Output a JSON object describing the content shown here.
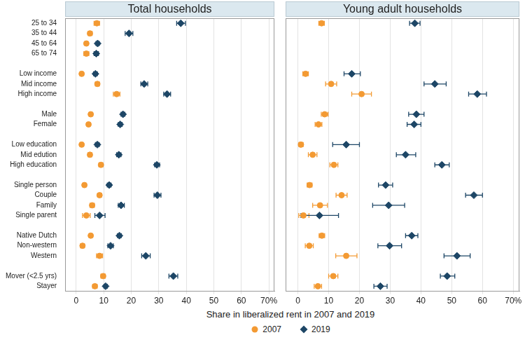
{
  "chart_data": [
    {
      "type": "dot",
      "title": "Total households",
      "categories": [
        "25 to 34",
        "35 to 44",
        "45 to 64",
        "65 to 74",
        null,
        "Low income",
        "Mid income",
        "High income",
        null,
        "Male",
        "Female",
        null,
        "Low education",
        "Mid edution",
        "High education",
        null,
        "Single person",
        "Couple",
        "Family",
        "Single parent",
        null,
        "Native Dutch",
        "Non-western",
        "Western",
        null,
        "Mover (<2.5 yrs)",
        "Stayer"
      ],
      "series": [
        {
          "name": "2007",
          "color": "#f39a33",
          "marker": "circle",
          "values": [
            7.5,
            5,
            3.7,
            3.7,
            null,
            2,
            7.7,
            14.7,
            null,
            5.3,
            4.5,
            null,
            2,
            5,
            9,
            null,
            3,
            8.5,
            5.8,
            3.7,
            null,
            5.3,
            2.3,
            8.5,
            null,
            9.8,
            6.8
          ],
          "ci_low": [
            6.5,
            4.3,
            3.2,
            2.8,
            null,
            1.5,
            7,
            13.5,
            null,
            4.8,
            4,
            null,
            1.5,
            4.3,
            8.3,
            null,
            2.5,
            7.8,
            5,
            2.3,
            null,
            4.8,
            1.6,
            7.4,
            null,
            9,
            6
          ],
          "ci_high": [
            8.5,
            5.8,
            4.2,
            4.6,
            null,
            2.5,
            8.4,
            15.9,
            null,
            5.8,
            5,
            null,
            2.5,
            5.7,
            9.7,
            null,
            3.5,
            9.2,
            6.6,
            5.1,
            null,
            5.8,
            3,
            9.6,
            null,
            10.6,
            7.6
          ]
        },
        {
          "name": "2019",
          "color": "#1d4666",
          "marker": "diamond",
          "values": [
            38,
            19.2,
            7.8,
            7.3,
            null,
            7,
            24.7,
            33,
            null,
            17,
            16,
            null,
            7.7,
            15.5,
            29.3,
            null,
            12,
            29.5,
            16.3,
            8.5,
            null,
            15.7,
            12.5,
            25.3,
            null,
            35.3,
            10.7
          ],
          "ci_low": [
            36.5,
            17.8,
            7.2,
            6.5,
            null,
            6.3,
            23.5,
            31.8,
            null,
            16.3,
            15.3,
            null,
            7,
            14.7,
            28.5,
            null,
            11.3,
            28.3,
            15.3,
            6.8,
            null,
            15,
            11.5,
            23.8,
            null,
            33.7,
            10.1
          ],
          "ci_high": [
            39.7,
            20.6,
            8.4,
            8.1,
            null,
            7.7,
            26,
            34.3,
            null,
            17.7,
            16.7,
            null,
            8.4,
            16.3,
            30.3,
            null,
            12.7,
            30.8,
            17.5,
            10.5,
            null,
            16.4,
            13.5,
            26.9,
            null,
            36.9,
            11.3
          ]
        }
      ],
      "xlabel": "Share in liberalized rent in 2007 and 2019",
      "xlim": [
        -4,
        72
      ],
      "xticks": [
        0,
        10,
        20,
        30,
        40,
        50,
        60,
        {
          "value": 70,
          "label": "70%"
        }
      ],
      "grid": true,
      "legend": "bottom"
    },
    {
      "type": "dot",
      "title": "Young adult households",
      "categories": [
        null,
        null,
        null,
        null,
        null,
        null,
        null,
        null,
        null,
        null,
        null,
        null,
        null,
        null,
        null,
        null,
        null,
        null,
        null,
        null,
        null,
        null,
        null,
        null,
        null,
        null,
        null
      ],
      "series": [
        {
          "name": "2007",
          "color": "#f39a33",
          "marker": "circle",
          "values": [
            7.7,
            null,
            null,
            null,
            null,
            2.5,
            10.8,
            20.7,
            null,
            8.7,
            6.7,
            null,
            1,
            4.8,
            11.7,
            null,
            3.8,
            14.2,
            7.2,
            1.8,
            null,
            7.8,
            3.7,
            15.7,
            null,
            11.5,
            6.5
          ],
          "ci_low": [
            6.8,
            null,
            null,
            null,
            null,
            1.6,
            9,
            17.5,
            null,
            7.6,
            5.6,
            null,
            0.3,
            3.4,
            10.4,
            null,
            3,
            12.4,
            4.8,
            0.3,
            null,
            6.9,
            2.4,
            12.3,
            null,
            10,
            5.3
          ],
          "ci_high": [
            8.6,
            null,
            null,
            null,
            null,
            3.4,
            12.6,
            23.9,
            null,
            9.8,
            7.8,
            null,
            1.7,
            6.2,
            13,
            null,
            4.6,
            16,
            9.6,
            3.6,
            null,
            8.7,
            5,
            19.2,
            null,
            13,
            7.7
          ]
        },
        {
          "name": "2019",
          "color": "#1d4666",
          "marker": "diamond",
          "values": [
            38,
            null,
            null,
            null,
            null,
            17.5,
            44.5,
            58.3,
            null,
            38.5,
            37.8,
            null,
            15.7,
            35,
            46.8,
            null,
            28.5,
            57.2,
            29.5,
            7,
            null,
            37,
            29.8,
            51.7,
            null,
            48.5,
            26.8
          ],
          "ci_low": [
            36.3,
            null,
            null,
            null,
            null,
            15,
            41,
            55.5,
            null,
            36,
            35.5,
            null,
            11.3,
            32,
            44.5,
            null,
            26.2,
            54.5,
            24.3,
            1,
            null,
            35,
            26,
            47.5,
            null,
            46.3,
            24.7
          ],
          "ci_high": [
            39.7,
            null,
            null,
            null,
            null,
            20.3,
            48.2,
            61.3,
            null,
            41,
            40,
            null,
            20,
            38.3,
            49.2,
            null,
            30.8,
            60,
            34.7,
            13.2,
            null,
            39,
            33.7,
            56,
            null,
            51,
            29
          ]
        }
      ],
      "xlim": [
        -4,
        72
      ],
      "xticks": [
        0,
        10,
        20,
        30,
        40,
        50,
        60,
        {
          "value": 70,
          "label": "70%"
        }
      ],
      "grid": true,
      "tick_labels": "x"
    }
  ]
}
